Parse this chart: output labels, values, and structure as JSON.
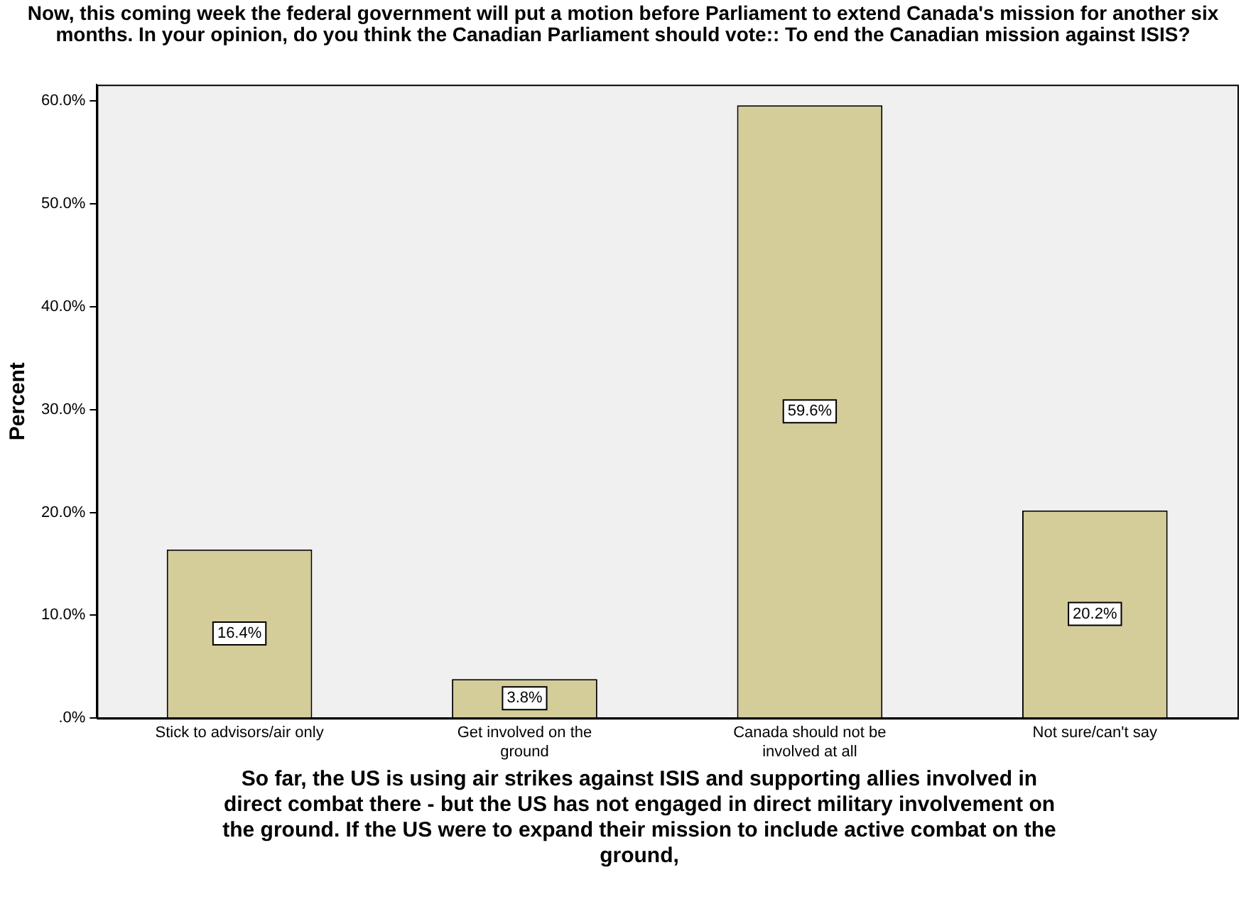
{
  "chart_data": {
    "type": "bar",
    "title": "Now, this coming week the federal government will put a motion before Parliament to extend Canada's mission for another six months. In your opinion, do you think the Canadian Parliament should vote:: To end the Canadian mission against ISIS?",
    "xlabel": "So far, the US is using air strikes against ISIS and supporting allies involved in direct combat there - but the US has not engaged in direct military involvement on the ground. If the US were to expand their mission to include active combat on the ground,",
    "ylabel": "Percent",
    "categories": [
      "Stick to advisors/air only",
      "Get involved on the ground",
      "Canada should not be involved at all",
      "Not sure/can't say"
    ],
    "values": [
      16.4,
      3.8,
      59.6,
      20.2
    ],
    "value_labels": [
      "16.4%",
      "3.8%",
      "59.6%",
      "20.2%"
    ],
    "color": "#d4cc99",
    "ylim": [
      0,
      61.6
    ],
    "yticks": [
      {
        "value": 0,
        "label": ".0%"
      },
      {
        "value": 10,
        "label": "10.0%"
      },
      {
        "value": 20,
        "label": "20.0%"
      },
      {
        "value": 30,
        "label": "30.0%"
      },
      {
        "value": 40,
        "label": "40.0%"
      },
      {
        "value": 50,
        "label": "50.0%"
      },
      {
        "value": 60,
        "label": "60.0%"
      }
    ]
  }
}
